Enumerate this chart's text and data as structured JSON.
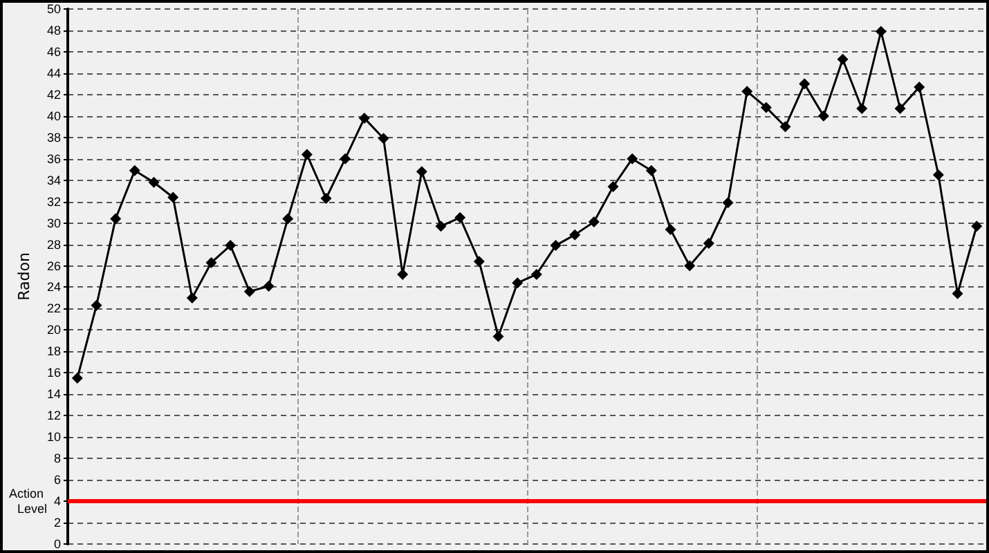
{
  "chart_data": {
    "type": "line",
    "ylabel": "Radon",
    "categories": [
      null,
      null,
      null,
      null,
      null,
      null,
      null,
      null,
      null,
      null,
      null,
      null,
      null,
      null,
      null,
      null,
      null,
      null,
      null,
      null,
      null,
      null,
      null,
      null,
      null,
      null,
      null,
      null,
      null,
      null,
      null,
      null,
      null,
      null,
      null,
      null,
      null,
      null,
      null,
      null,
      null,
      null,
      null,
      null,
      null,
      null,
      null,
      null
    ],
    "series": [
      {
        "color": "#000000",
        "values": [
          15.5,
          22.3,
          30.4,
          34.9,
          33.8,
          32.4,
          23.0,
          26.3,
          27.9,
          23.6,
          24.1,
          30.4,
          36.4,
          32.3,
          36.0,
          39.8,
          37.9,
          25.2,
          34.8,
          29.7,
          30.5,
          26.4,
          19.4,
          24.4,
          25.2,
          27.9,
          28.9,
          30.1,
          33.4,
          36.0,
          34.9,
          29.4,
          26.0,
          28.1,
          31.9,
          42.3,
          40.8,
          39.0,
          43.0,
          40.0,
          45.3,
          40.7,
          47.9,
          40.7,
          42.7,
          34.5,
          23.4,
          29.7
        ]
      }
    ],
    "ylim": [
      0,
      50
    ],
    "yticks": [
      0,
      2,
      4,
      6,
      8,
      10,
      12,
      14,
      16,
      18,
      20,
      22,
      24,
      26,
      28,
      30,
      32,
      34,
      36,
      38,
      40,
      42,
      44,
      46,
      48,
      50
    ],
    "ref_lines": [
      {
        "axis": "y",
        "value": 4,
        "label": "Action Level",
        "color": "#ff0000",
        "line_style": "solid"
      }
    ],
    "grid": true,
    "marker": "diamond",
    "line_style": "solid",
    "tick_labels": "y"
  }
}
